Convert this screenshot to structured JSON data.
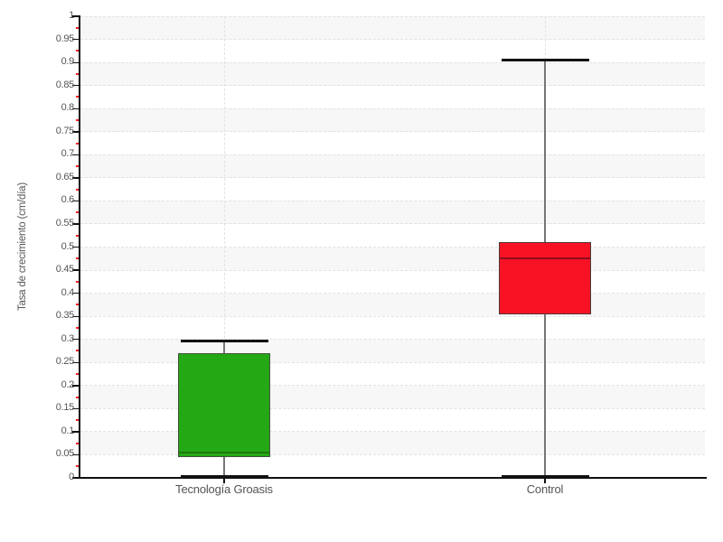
{
  "chart_data": {
    "type": "boxplot",
    "title": "",
    "xlabel": "",
    "ylabel": "Tasa de crecimiento (cm/día)",
    "ylim": [
      0,
      1
    ],
    "ytick_step": 0.05,
    "yminor_step": 0.025,
    "yticks": [
      "0",
      "0.05",
      "0.1",
      "0.15",
      "0.2",
      "0.25",
      "0.3",
      "0.35",
      "0.4",
      "0.45",
      "0.5",
      "0.55",
      "0.6",
      "0.65",
      "0.7",
      "0.75",
      "0.8",
      "0.85",
      "0.9",
      "0.95",
      "1"
    ],
    "categories": [
      "Tecnología Groasis",
      "Control"
    ],
    "series": [
      {
        "name": "Tecnología Groasis",
        "min": 0.002,
        "q1": 0.045,
        "median": 0.055,
        "q3": 0.27,
        "max": 0.297,
        "box_color": "#24a814",
        "median_color": "#1b7a0c",
        "border_color": "#44503f"
      },
      {
        "name": "Control",
        "min": 0.002,
        "q1": 0.355,
        "median": 0.475,
        "q3": 0.51,
        "max": 0.905,
        "box_color": "#f91224",
        "median_color": "#8c0f1f",
        "border_color": "#50383a"
      }
    ],
    "grid": "horizontal dashed gridlines every 0.05 over alternating shaded bands; vertical dashed gridline at each category center",
    "legend": "none",
    "colors": {
      "background": "#ffffff",
      "band": "#f7f7f7",
      "gridline": "#e2e2e2",
      "axis": "#111111",
      "tick_label": "#545454",
      "axis_label": "#555555",
      "minor_tick": "#ff2222",
      "whisker": "#777777",
      "cap": "#111111"
    }
  }
}
